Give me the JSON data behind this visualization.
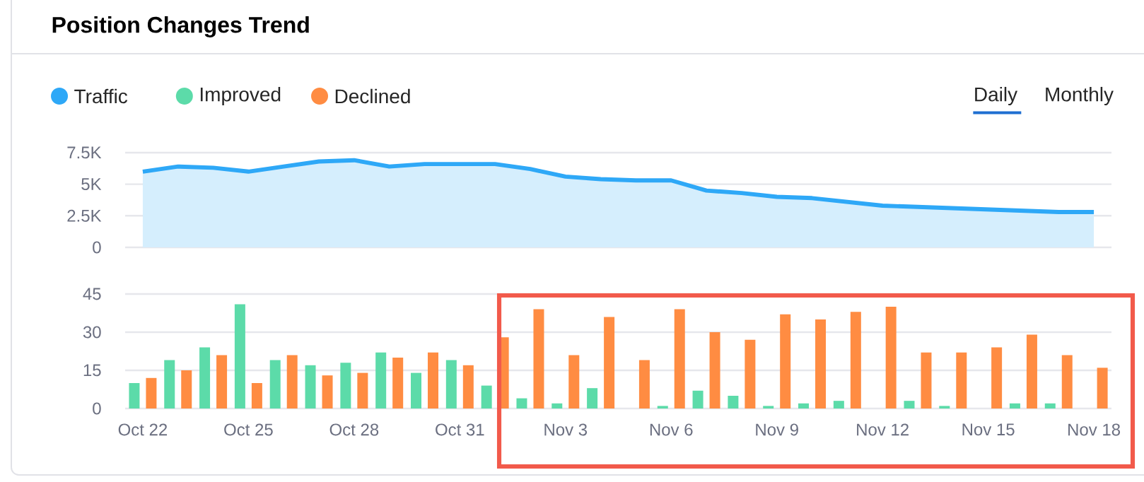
{
  "chart_data": [
    {
      "type": "area",
      "title": "Position Changes Trend",
      "annotations": [
        "Daily",
        "Monthly"
      ],
      "categories": [
        null,
        null,
        null,
        null,
        null,
        null,
        null,
        null,
        null,
        null,
        null,
        null,
        null,
        null,
        null,
        null,
        null,
        null,
        null,
        null,
        null,
        null,
        null,
        null,
        null,
        null,
        null,
        null
      ],
      "series": [
        {
          "name": "Traffic",
          "color": "#2ea8f7",
          "values": [
            6000,
            6400,
            6300,
            6000,
            6400,
            6800,
            6900,
            6400,
            6600,
            6600,
            6600,
            6200,
            5600,
            5400,
            5300,
            5300,
            4500,
            4300,
            4000,
            3900,
            3600,
            3300,
            3200,
            3100,
            3000,
            2900,
            2800,
            2800
          ]
        }
      ],
      "ylim": [
        0,
        7500
      ],
      "yticks": [
        0,
        {
          "value": 2500,
          "label": "2.5K"
        },
        {
          "value": 5000,
          "label": "5K"
        },
        {
          "value": 7500,
          "label": "7.5K"
        }
      ],
      "grid": "y",
      "legend": "top left"
    },
    {
      "type": "bar",
      "categories": [
        "Oct 22",
        null,
        null,
        "Oct 25",
        null,
        null,
        "Oct 28",
        null,
        null,
        "Oct 31",
        null,
        null,
        "Nov 3",
        null,
        null,
        "Nov 6",
        null,
        null,
        "Nov 9",
        null,
        null,
        "Nov 12",
        null,
        null,
        "Nov 15",
        null,
        null,
        "Nov 18"
      ],
      "series": [
        {
          "name": "Improved",
          "color": "#5cdba9",
          "values": [
            10,
            19,
            24,
            41,
            19,
            17,
            18,
            22,
            14,
            19,
            9,
            4,
            2,
            8,
            0,
            1,
            7,
            5,
            1,
            2,
            3,
            0,
            3,
            1,
            0,
            2,
            2,
            0
          ]
        },
        {
          "name": "Declined",
          "color": "#ff8c42",
          "values": [
            12,
            15,
            21,
            10,
            21,
            13,
            14,
            20,
            22,
            17,
            28,
            39,
            21,
            36,
            19,
            39,
            30,
            27,
            37,
            35,
            38,
            40,
            22,
            22,
            24,
            29,
            21,
            16
          ]
        }
      ],
      "ylim": [
        0,
        45
      ],
      "yticks": [
        0,
        15,
        30,
        45
      ],
      "grid": "y",
      "legend": "top left"
    }
  ]
}
